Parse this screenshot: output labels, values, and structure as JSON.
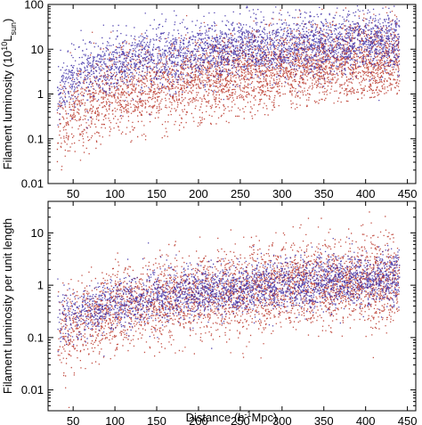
{
  "colors": {
    "blue_series": "#3a2aa6",
    "red_series": "#b83226",
    "axis": "#000000",
    "background": "#ffffff"
  },
  "chart_data": [
    {
      "type": "scatter",
      "title": "",
      "ylabel_main": "Filament luminosity (10",
      "ylabel_sup": "10",
      "ylabel_mid": "L",
      "ylabel_sub": "sun",
      "ylabel_end": ")",
      "xlabel": "",
      "xlim": [
        20,
        460
      ],
      "ylim": [
        0.01,
        100
      ],
      "yscale": "log",
      "x_ticks": [
        50,
        100,
        150,
        200,
        250,
        300,
        350,
        400,
        450
      ],
      "x_tick_labels": [
        "50",
        "100",
        "150",
        "200",
        "250",
        "300",
        "350",
        "400",
        "450"
      ],
      "y_ticks": [
        0.01,
        0.1,
        1,
        10,
        100
      ],
      "y_tick_labels": [
        "0.01",
        "0.1",
        "1",
        "10",
        "100"
      ],
      "series": [
        {
          "color": "#3a2aa6",
          "x_range": [
            30,
            440
          ],
          "y_median_at_x": [
            [
              30,
              1.2
            ],
            [
              60,
              3.0
            ],
            [
              100,
              5.0
            ],
            [
              150,
              7.0
            ],
            [
              200,
              9.0
            ],
            [
              250,
              11
            ],
            [
              300,
              12
            ],
            [
              350,
              14
            ],
            [
              400,
              15
            ],
            [
              440,
              16
            ]
          ],
          "y_spread_dex": 0.35
        },
        {
          "color": "#b83226",
          "x_range": [
            30,
            440
          ],
          "y_median_at_x": [
            [
              30,
              0.15
            ],
            [
              60,
              0.5
            ],
            [
              100,
              1.0
            ],
            [
              150,
              1.6
            ],
            [
              200,
              2.3
            ],
            [
              250,
              3.0
            ],
            [
              300,
              3.8
            ],
            [
              350,
              4.5
            ],
            [
              400,
              5.5
            ],
            [
              440,
              6.0
            ]
          ],
          "y_lower_envelope": [
            [
              40,
              0.01
            ],
            [
              60,
              0.03
            ],
            [
              100,
              0.06
            ],
            [
              150,
              0.1
            ],
            [
              200,
              0.16
            ],
            [
              250,
              0.25
            ],
            [
              300,
              0.4
            ],
            [
              350,
              0.6
            ],
            [
              400,
              0.8
            ],
            [
              440,
              1.0
            ]
          ],
          "y_spread_dex": 0.45
        }
      ]
    },
    {
      "type": "scatter",
      "title": "",
      "ylabel": "Filament luminosity per unit length",
      "xlabel": "Distance  (h",
      "xlabel_sup": "-1",
      "xlabel_end": "Mpc)",
      "xlim": [
        20,
        460
      ],
      "ylim": [
        0.004,
        40
      ],
      "yscale": "log",
      "x_ticks": [
        50,
        100,
        150,
        200,
        250,
        300,
        350,
        400,
        450
      ],
      "x_tick_labels": [
        "50",
        "100",
        "150",
        "200",
        "250",
        "300",
        "350",
        "400",
        "450"
      ],
      "y_ticks": [
        0.01,
        0.1,
        1,
        10
      ],
      "y_tick_labels": [
        "0.01",
        "0.1",
        "1",
        "10"
      ],
      "series": [
        {
          "color": "#3a2aa6",
          "x_range": [
            30,
            440
          ],
          "y_median_at_x": [
            [
              30,
              0.2
            ],
            [
              60,
              0.3
            ],
            [
              100,
              0.45
            ],
            [
              150,
              0.6
            ],
            [
              200,
              0.75
            ],
            [
              250,
              0.9
            ],
            [
              300,
              1.0
            ],
            [
              350,
              1.15
            ],
            [
              400,
              1.3
            ],
            [
              440,
              1.4
            ]
          ],
          "y_spread_dex": 0.25
        },
        {
          "color": "#b83226",
          "x_range": [
            30,
            440
          ],
          "y_median_at_x": [
            [
              30,
              0.1
            ],
            [
              60,
              0.2
            ],
            [
              100,
              0.35
            ],
            [
              150,
              0.5
            ],
            [
              200,
              0.65
            ],
            [
              250,
              0.8
            ],
            [
              300,
              0.95
            ],
            [
              350,
              1.1
            ],
            [
              400,
              1.2
            ],
            [
              440,
              1.3
            ]
          ],
          "y_spread_dex": 0.4
        }
      ]
    }
  ]
}
